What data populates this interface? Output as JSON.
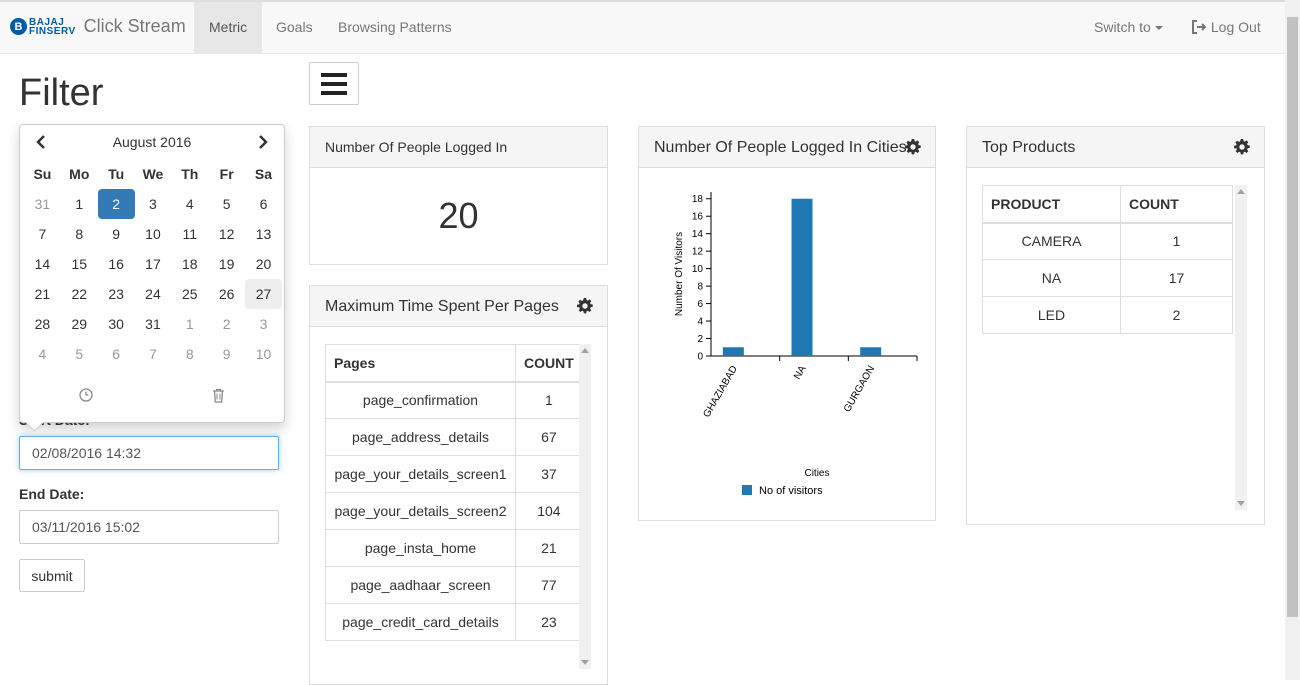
{
  "nav": {
    "brand_logo_letter": "B",
    "brand_logo_line1": "BAJAJ",
    "brand_logo_line2": "FINSERV",
    "brand_name": "Click Stream",
    "items": [
      {
        "label": "Metric",
        "active": true
      },
      {
        "label": "Goals",
        "active": false
      },
      {
        "label": "Browsing Patterns",
        "active": false
      }
    ],
    "switch_label": "Switch to",
    "logout_label": "Log Out"
  },
  "filter": {
    "title": "Filter",
    "start_label": "Start Date:",
    "start_value": "02/08/2016 14:32",
    "end_label": "End Date:",
    "end_value": "03/11/2016 15:02",
    "submit_label": "submit"
  },
  "calendar": {
    "month": "August 2016",
    "weekdays": [
      "Su",
      "Mo",
      "Tu",
      "We",
      "Th",
      "Fr",
      "Sa"
    ],
    "weeks": [
      [
        "31",
        "1",
        "2",
        "3",
        "4",
        "5",
        "6"
      ],
      [
        "7",
        "8",
        "9",
        "10",
        "11",
        "12",
        "13"
      ],
      [
        "14",
        "15",
        "16",
        "17",
        "18",
        "19",
        "20"
      ],
      [
        "21",
        "22",
        "23",
        "24",
        "25",
        "26",
        "27"
      ],
      [
        "28",
        "29",
        "30",
        "31",
        "1",
        "2",
        "3"
      ],
      [
        "4",
        "5",
        "6",
        "7",
        "8",
        "9",
        "10"
      ]
    ],
    "selected_day": "2",
    "highlighted_day": "27"
  },
  "logged_in": {
    "title": "Number Of People Logged In",
    "value": "20"
  },
  "time_spent": {
    "title": "Maximum Time Spent Per Pages",
    "columns": [
      "Pages",
      "COUNT"
    ],
    "rows": [
      [
        "page_confirmation",
        "1"
      ],
      [
        "page_address_details",
        "67"
      ],
      [
        "page_your_details_screen1",
        "37"
      ],
      [
        "page_your_details_screen2",
        "104"
      ],
      [
        "page_insta_home",
        "21"
      ],
      [
        "page_aadhaar_screen",
        "77"
      ],
      [
        "page_credit_card_details",
        "23"
      ]
    ]
  },
  "cities": {
    "title": "Number Of People Logged In Cities",
    "chart_data": {
      "type": "bar",
      "categories": [
        "GHAZIABAD",
        "NA",
        "GURGAON"
      ],
      "series": [
        {
          "name": "No of visitors",
          "values": [
            1,
            18,
            1
          ],
          "color": "#1f77b4"
        }
      ],
      "xlabel": "Cities",
      "ylabel": "Number Of Visitors",
      "ylim": [
        0,
        19
      ],
      "yticks": [
        0,
        2,
        4,
        6,
        8,
        10,
        12,
        14,
        16,
        18
      ],
      "legend": "bottom"
    }
  },
  "products": {
    "title": "Top Products",
    "columns": [
      "PRODUCT",
      "COUNT"
    ],
    "rows": [
      [
        "CAMERA",
        "1"
      ],
      [
        "NA",
        "17"
      ],
      [
        "LED",
        "2"
      ]
    ]
  }
}
